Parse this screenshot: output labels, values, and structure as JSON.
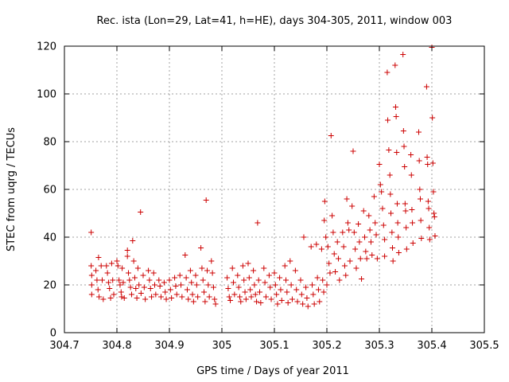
{
  "chart_data": {
    "type": "scatter",
    "title": "Rec. ista (Lon=29, Lat=41, h=HE), days 304-305, 2011, window 003",
    "xlabel": "GPS time / Days of year 2011",
    "ylabel": "STEC from uqrg / TECUs",
    "xlim": [
      304.7,
      305.5
    ],
    "ylim": [
      0,
      120
    ],
    "xticks": [
      "304.7",
      "304.8",
      "304.9",
      "305",
      "305.1",
      "305.2",
      "305.3",
      "305.4",
      "305.5"
    ],
    "yticks": [
      "0",
      "20",
      "40",
      "60",
      "80",
      "100",
      "120"
    ],
    "grid": true,
    "marker": "+",
    "marker_color": "#cc0000",
    "series": [
      {
        "points": [
          [
            304.751,
            42.0
          ],
          [
            304.751,
            28.0
          ],
          [
            304.752,
            24.0
          ],
          [
            304.752,
            20.0
          ],
          [
            304.752,
            16.0
          ],
          [
            304.76,
            26.0
          ],
          [
            304.762,
            22.0
          ],
          [
            304.764,
            18.0
          ],
          [
            304.765,
            31.5
          ],
          [
            304.766,
            15.0
          ],
          [
            304.77,
            28.0
          ],
          [
            304.772,
            22.0
          ],
          [
            304.774,
            14.0
          ],
          [
            304.78,
            28.0
          ],
          [
            304.782,
            25.0
          ],
          [
            304.784,
            21.0
          ],
          [
            304.786,
            18.5
          ],
          [
            304.788,
            14.5
          ],
          [
            304.79,
            29.0
          ],
          [
            304.792,
            22.0
          ],
          [
            304.794,
            16.0
          ],
          [
            304.8,
            30.0
          ],
          [
            304.802,
            28.0
          ],
          [
            304.804,
            22.0
          ],
          [
            304.806,
            20.0
          ],
          [
            304.808,
            17.0
          ],
          [
            304.809,
            15.0
          ],
          [
            304.81,
            27.0
          ],
          [
            304.812,
            21.0
          ],
          [
            304.814,
            14.5
          ],
          [
            304.82,
            34.5
          ],
          [
            304.82,
            32.0
          ],
          [
            304.822,
            25.0
          ],
          [
            304.824,
            22.0
          ],
          [
            304.826,
            19.0
          ],
          [
            304.828,
            16.0
          ],
          [
            304.83,
            38.5
          ],
          [
            304.832,
            30.0
          ],
          [
            304.834,
            23.0
          ],
          [
            304.836,
            18.5
          ],
          [
            304.838,
            14.5
          ],
          [
            304.84,
            27.0
          ],
          [
            304.842,
            20.0
          ],
          [
            304.845,
            50.5
          ],
          [
            304.846,
            16.5
          ],
          [
            304.85,
            24.0
          ],
          [
            304.852,
            19.0
          ],
          [
            304.854,
            14.0
          ],
          [
            304.86,
            26.0
          ],
          [
            304.862,
            22.0
          ],
          [
            304.864,
            18.5
          ],
          [
            304.866,
            15.0
          ],
          [
            304.87,
            25.0
          ],
          [
            304.872,
            20.0
          ],
          [
            304.874,
            16.0
          ],
          [
            304.88,
            22.0
          ],
          [
            304.882,
            19.5
          ],
          [
            304.884,
            15.0
          ],
          [
            304.89,
            21.0
          ],
          [
            304.892,
            17.0
          ],
          [
            304.894,
            14.0
          ],
          [
            304.9,
            22.0
          ],
          [
            304.902,
            18.0
          ],
          [
            304.904,
            14.5
          ],
          [
            304.91,
            23.0
          ],
          [
            304.912,
            19.5
          ],
          [
            304.914,
            16.0
          ],
          [
            304.92,
            24.0
          ],
          [
            304.922,
            20.0
          ],
          [
            304.924,
            15.0
          ],
          [
            304.93,
            32.5
          ],
          [
            304.932,
            23.0
          ],
          [
            304.934,
            18.0
          ],
          [
            304.936,
            14.0
          ],
          [
            304.94,
            26.0
          ],
          [
            304.942,
            21.0
          ],
          [
            304.944,
            16.0
          ],
          [
            304.946,
            13.0
          ],
          [
            304.95,
            24.0
          ],
          [
            304.952,
            20.0
          ],
          [
            304.954,
            15.0
          ],
          [
            304.96,
            35.5
          ],
          [
            304.962,
            27.0
          ],
          [
            304.964,
            22.0
          ],
          [
            304.966,
            17.0
          ],
          [
            304.968,
            13.0
          ],
          [
            304.97,
            55.5
          ],
          [
            304.972,
            26.0
          ],
          [
            304.974,
            20.0
          ],
          [
            304.976,
            15.0
          ],
          [
            304.98,
            30.0
          ],
          [
            304.982,
            25.0
          ],
          [
            304.984,
            19.0
          ],
          [
            304.986,
            14.0
          ],
          [
            304.988,
            12.0
          ],
          [
            305.01,
            23.0
          ],
          [
            305.012,
            18.5
          ],
          [
            305.014,
            15.0
          ],
          [
            305.016,
            13.5
          ],
          [
            305.02,
            27.0
          ],
          [
            305.022,
            21.0
          ],
          [
            305.024,
            16.0
          ],
          [
            305.03,
            24.0
          ],
          [
            305.032,
            19.0
          ],
          [
            305.034,
            15.0
          ],
          [
            305.036,
            13.0
          ],
          [
            305.04,
            28.0
          ],
          [
            305.042,
            22.0
          ],
          [
            305.044,
            17.0
          ],
          [
            305.046,
            14.0
          ],
          [
            305.05,
            29.0
          ],
          [
            305.052,
            23.0
          ],
          [
            305.054,
            18.0
          ],
          [
            305.056,
            15.0
          ],
          [
            305.06,
            26.0
          ],
          [
            305.062,
            20.0
          ],
          [
            305.064,
            16.0
          ],
          [
            305.066,
            13.0
          ],
          [
            305.068,
            46.0
          ],
          [
            305.07,
            22.0
          ],
          [
            305.072,
            17.0
          ],
          [
            305.074,
            12.5
          ],
          [
            305.08,
            27.0
          ],
          [
            305.082,
            21.0
          ],
          [
            305.084,
            15.0
          ],
          [
            305.09,
            24.0
          ],
          [
            305.092,
            19.0
          ],
          [
            305.094,
            14.0
          ],
          [
            305.1,
            25.0
          ],
          [
            305.102,
            20.0
          ],
          [
            305.104,
            16.0
          ],
          [
            305.106,
            12.0
          ],
          [
            305.11,
            23.0
          ],
          [
            305.112,
            18.0
          ],
          [
            305.114,
            13.5
          ],
          [
            305.12,
            28.0
          ],
          [
            305.122,
            22.0
          ],
          [
            305.124,
            17.0
          ],
          [
            305.126,
            12.5
          ],
          [
            305.13,
            30.0
          ],
          [
            305.132,
            20.0
          ],
          [
            305.134,
            14.0
          ],
          [
            305.14,
            26.0
          ],
          [
            305.142,
            18.0
          ],
          [
            305.144,
            13.0
          ],
          [
            305.15,
            22.0
          ],
          [
            305.152,
            16.0
          ],
          [
            305.154,
            12.0
          ],
          [
            305.156,
            40.0
          ],
          [
            305.16,
            19.0
          ],
          [
            305.162,
            14.5
          ],
          [
            305.164,
            11.0
          ],
          [
            305.17,
            36.0
          ],
          [
            305.172,
            20.0
          ],
          [
            305.174,
            16.0
          ],
          [
            305.176,
            12.0
          ],
          [
            305.18,
            37.0
          ],
          [
            305.182,
            23.0
          ],
          [
            305.184,
            18.0
          ],
          [
            305.186,
            13.0
          ],
          [
            305.19,
            35.0
          ],
          [
            305.192,
            22.0
          ],
          [
            305.194,
            17.0
          ],
          [
            305.195,
            47.0
          ],
          [
            305.196,
            55.0
          ],
          [
            305.198,
            40.0
          ],
          [
            305.2,
            20.0
          ],
          [
            305.202,
            36.0
          ],
          [
            305.204,
            29.0
          ],
          [
            305.206,
            25.0
          ],
          [
            305.208,
            82.5
          ],
          [
            305.21,
            49.0
          ],
          [
            305.212,
            42.0
          ],
          [
            305.214,
            33.0
          ],
          [
            305.216,
            25.5
          ],
          [
            305.22,
            38.0
          ],
          [
            305.222,
            31.0
          ],
          [
            305.224,
            22.0
          ],
          [
            305.23,
            42.0
          ],
          [
            305.232,
            36.0
          ],
          [
            305.234,
            28.0
          ],
          [
            305.236,
            24.0
          ],
          [
            305.238,
            56.0
          ],
          [
            305.24,
            46.0
          ],
          [
            305.242,
            43.0
          ],
          [
            305.244,
            30.0
          ],
          [
            305.248,
            53.0
          ],
          [
            305.25,
            76.0
          ],
          [
            305.252,
            42.0
          ],
          [
            305.254,
            35.0
          ],
          [
            305.256,
            27.0
          ],
          [
            305.26,
            45.5
          ],
          [
            305.262,
            38.0
          ],
          [
            305.264,
            31.0
          ],
          [
            305.266,
            22.5
          ],
          [
            305.27,
            51.0
          ],
          [
            305.272,
            40.0
          ],
          [
            305.274,
            34.0
          ],
          [
            305.276,
            31.0
          ],
          [
            305.28,
            49.0
          ],
          [
            305.282,
            43.0
          ],
          [
            305.284,
            38.0
          ],
          [
            305.286,
            32.5
          ],
          [
            305.29,
            57.0
          ],
          [
            305.292,
            46.0
          ],
          [
            305.294,
            41.0
          ],
          [
            305.296,
            31.0
          ],
          [
            305.3,
            70.5
          ],
          [
            305.302,
            62.0
          ],
          [
            305.304,
            59.0
          ],
          [
            305.306,
            52.0
          ],
          [
            305.308,
            45.0
          ],
          [
            305.31,
            39.0
          ],
          [
            305.31,
            32.0
          ],
          [
            305.315,
            109.0
          ],
          [
            305.316,
            89.0
          ],
          [
            305.318,
            76.5
          ],
          [
            305.32,
            66.0
          ],
          [
            305.321,
            58.0
          ],
          [
            305.322,
            50.0
          ],
          [
            305.324,
            42.0
          ],
          [
            305.325,
            35.5
          ],
          [
            305.326,
            30.0
          ],
          [
            305.33,
            112.0
          ],
          [
            305.331,
            94.5
          ],
          [
            305.332,
            90.5
          ],
          [
            305.333,
            75.5
          ],
          [
            305.334,
            54.0
          ],
          [
            305.335,
            46.0
          ],
          [
            305.336,
            40.0
          ],
          [
            305.337,
            33.5
          ],
          [
            305.345,
            116.5
          ],
          [
            305.346,
            84.5
          ],
          [
            305.347,
            78.0
          ],
          [
            305.348,
            69.5
          ],
          [
            305.349,
            54.0
          ],
          [
            305.35,
            51.0
          ],
          [
            305.351,
            44.0
          ],
          [
            305.352,
            35.0
          ],
          [
            305.36,
            74.5
          ],
          [
            305.361,
            66.0
          ],
          [
            305.362,
            51.5
          ],
          [
            305.363,
            46.0
          ],
          [
            305.364,
            37.5
          ],
          [
            305.375,
            84.0
          ],
          [
            305.376,
            72.0
          ],
          [
            305.377,
            60.0
          ],
          [
            305.378,
            56.0
          ],
          [
            305.379,
            47.0
          ],
          [
            305.38,
            39.5
          ],
          [
            305.39,
            103.0
          ],
          [
            305.391,
            73.5
          ],
          [
            305.392,
            70.5
          ],
          [
            305.393,
            55.0
          ],
          [
            305.394,
            52.0
          ],
          [
            305.395,
            44.0
          ],
          [
            305.396,
            39.0
          ],
          [
            305.4,
            119.5
          ],
          [
            305.401,
            90.0
          ],
          [
            305.402,
            71.0
          ],
          [
            305.403,
            59.0
          ],
          [
            305.404,
            50.0
          ],
          [
            305.405,
            48.5
          ],
          [
            305.406,
            40.5
          ]
        ]
      }
    ]
  }
}
